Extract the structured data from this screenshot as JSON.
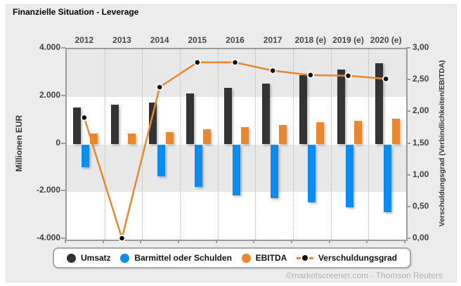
{
  "header": {
    "title": "Finanzielle Situation - Leverage"
  },
  "footer": {
    "credit": "©marketscreener.com - Thomson Reuters"
  },
  "colors": {
    "widget_background": "#ececec",
    "plot_band_gray": "#e8e8e8",
    "plot_band_white": "#ffffff",
    "axis_line": "#9c9c9c",
    "umsatz": "#333333",
    "barmittel": "#0d8cf0",
    "ebitda": "#e8872e",
    "line": "#e8872e",
    "marker_fill": "#111111",
    "marker_ring": "#ffffff"
  },
  "chart_data": {
    "type": "bar",
    "subtype": "grouped bars with secondary-axis line",
    "title": "Finanzielle Situation - Leverage",
    "categories": [
      "2012",
      "2013",
      "2014",
      "2015",
      "2016",
      "2017",
      "2018 (e)",
      "2019 (e)",
      "2020 (e)"
    ],
    "series": [
      {
        "name": "Umsatz",
        "type": "bar",
        "axis": "left",
        "color": "#333333",
        "values": [
          1550,
          1660,
          1760,
          2140,
          2390,
          2560,
          2900,
          3150,
          3400
        ]
      },
      {
        "name": "Barmittel oder Schulden",
        "type": "bar",
        "axis": "left",
        "color": "#0d8cf0",
        "values": [
          -950,
          0,
          -1350,
          -1790,
          -2140,
          -2270,
          -2450,
          -2650,
          -2850
        ]
      },
      {
        "name": "EBITDA",
        "type": "bar",
        "axis": "left",
        "color": "#e8872e",
        "values": [
          450,
          470,
          520,
          620,
          720,
          815,
          920,
          990,
          1090
        ]
      },
      {
        "name": "Verschuldungsgrad",
        "type": "line",
        "axis": "right",
        "color": "#e8872e",
        "marker": "black-dot",
        "values": [
          1.9,
          0.0,
          2.38,
          2.77,
          2.77,
          2.64,
          2.57,
          2.56,
          2.51
        ]
      }
    ],
    "left_axis": {
      "title": "Millionen EUR",
      "min": -4000,
      "max": 4000,
      "tick_labels": [
        "4.000",
        "2.000",
        "0",
        "-2.000",
        "-4.000"
      ]
    },
    "right_axis": {
      "title": "Verschuldungsgrad (Verbindlichkeiten/EBITDA)",
      "min": 0,
      "max": 3,
      "tick_labels": [
        "3,00",
        "2,50",
        "2,00",
        "1,50",
        "1,00",
        "0,50",
        "0,00"
      ]
    },
    "grid": {
      "vertical": "dotted between year slots",
      "horizontal": "alternating gray/white bands every 2000"
    },
    "legend": {
      "position": "bottom",
      "items": [
        {
          "label": "Umsatz",
          "swatch": "circle",
          "color": "#333333"
        },
        {
          "label": "Barmittel oder Schulden",
          "swatch": "circle",
          "color": "#0d8cf0"
        },
        {
          "label": "EBITDA",
          "swatch": "circle",
          "color": "#e8872e"
        },
        {
          "label": "Verschuldungsgrad",
          "swatch": "dash-dot-dash",
          "color": "#e8872e"
        }
      ]
    }
  }
}
